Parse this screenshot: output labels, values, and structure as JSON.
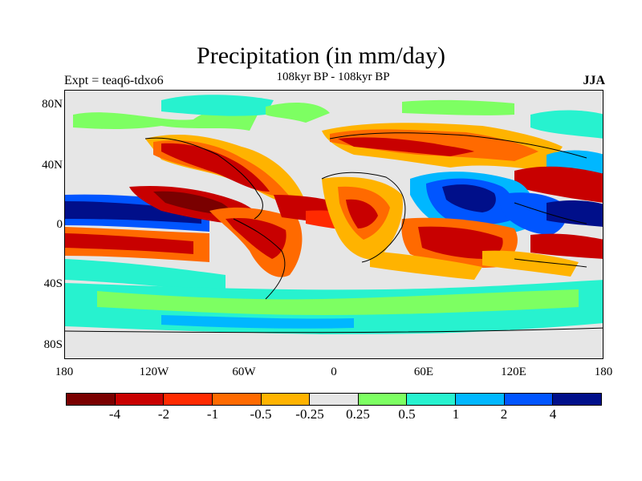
{
  "title": "Precipitation (in mm/day)",
  "left_label": "Expt = teaq6-tdxo6",
  "center_label": "108kyr BP - 108kyr BP",
  "right_label": "JJA",
  "y_labels": [
    "80N",
    "40N",
    "0",
    "40S",
    "80S"
  ],
  "x_labels": [
    "180",
    "120W",
    "60W",
    "0",
    "60E",
    "120E",
    "180"
  ],
  "colorbar": {
    "colors": [
      "#7a0000",
      "#c80000",
      "#ff2a00",
      "#ff6a00",
      "#ffb300",
      "#e6e6e6",
      "#7dff62",
      "#27f2cf",
      "#00b7ff",
      "#0055ff",
      "#000f8a"
    ],
    "labels": [
      "-4",
      "-2",
      "-1",
      "-0.5",
      "-0.25",
      "0.25",
      "0.5",
      "1",
      "2",
      "4"
    ]
  }
}
